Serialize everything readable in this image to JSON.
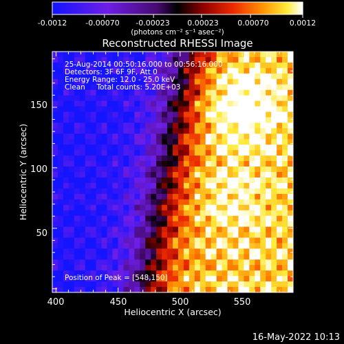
{
  "chart_data": {
    "type": "heatmap",
    "title": "Reconstructed RHESSI Image",
    "xlabel": "Heliocentric X (arcsec)",
    "ylabel": "Heliocentric Y (arcsec)",
    "xlim": [
      397,
      591
    ],
    "ylim": [
      -3,
      196
    ],
    "x_ticks": [
      400,
      450,
      500,
      550
    ],
    "y_ticks": [
      50,
      100,
      150
    ],
    "colorbar": {
      "min": -0.0012,
      "max": 0.0012,
      "tick_labels": [
        "-0.0012",
        "-0.00070",
        "-0.00023",
        "0.00023",
        "0.00070",
        "0.0012"
      ],
      "tick_values": [
        -0.0012,
        -0.0007,
        -0.00023,
        0.00023,
        0.0007,
        0.0012
      ],
      "unit_label": "(photons cm⁻² s⁻¹ asec⁻²)"
    },
    "info_lines": [
      "25-Aug-2014 00:50:16.000 to 00:56:16.000",
      "Detectors: 3F 6F 9F, Att 0",
      "Energy Range: 12.0 - 25.0 keV",
      "Clean     Total counts: 5.20E+03"
    ],
    "peak_label": "Position of Peak = [548,150]",
    "peak": [
      548,
      150
    ]
  },
  "footer": {
    "timestamp": "16-May-2022 10:13"
  },
  "colors": {
    "background": "#000000",
    "foreground": "#ffffff"
  }
}
